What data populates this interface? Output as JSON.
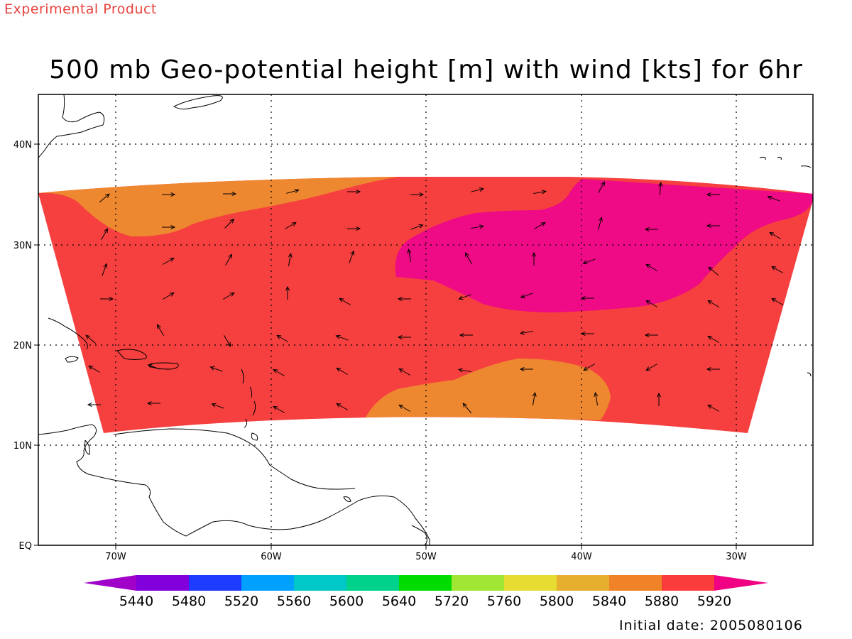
{
  "header_note": "Experimental Product",
  "title": "500 mb Geo-potential height [m] with wind [kts] for 6hr",
  "initial_date_text": "Initial date: 2005080106",
  "map": {
    "lon_labels": [
      "70W",
      "60W",
      "50W",
      "40W",
      "30W"
    ],
    "lat_labels": [
      "40N",
      "30N",
      "20N",
      "10N",
      "EQ"
    ],
    "region_colors": {
      "5840": "#ee8830",
      "5880": "#f5403f",
      "5920": "#ee0b85"
    }
  },
  "colorbar": {
    "levels": [
      "5440",
      "5480",
      "5520",
      "5560",
      "5600",
      "5640",
      "5720",
      "5760",
      "5800",
      "5840",
      "5880",
      "5920"
    ],
    "colors": [
      "#a000c8",
      "#8200dc",
      "#1e3cff",
      "#00a0ff",
      "#00c8c8",
      "#00d28c",
      "#00dc00",
      "#a0e632",
      "#e6dc32",
      "#e6af2d",
      "#f08228",
      "#fa3c3c",
      "#f00082"
    ]
  }
}
